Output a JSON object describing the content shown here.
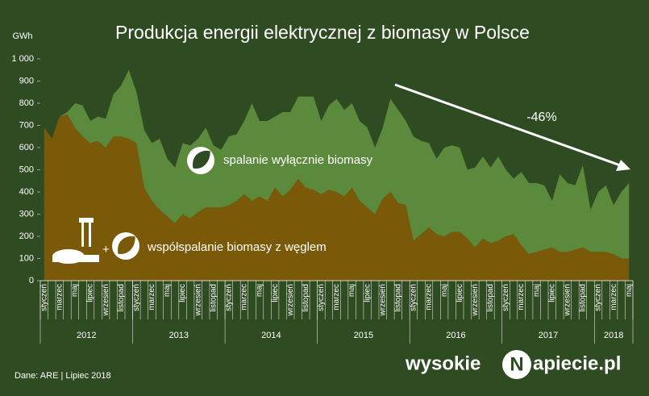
{
  "chart_data": {
    "type": "stacked-area",
    "title": "Produkcja energii elektrycznej z biomasy w Polsce",
    "y_label": "GWh",
    "categories": [
      "styczeń",
      null,
      "marzec",
      null,
      "maj",
      null,
      "lipiec",
      null,
      "wrzesień",
      null,
      "listopad",
      null,
      "styczeń",
      null,
      "marzec",
      null,
      "maj",
      null,
      "lipiec",
      null,
      "wrzesień",
      null,
      "listopad",
      null,
      "styczeń",
      null,
      "marzec",
      null,
      "maj",
      null,
      "lipiec",
      null,
      "wrzesień",
      null,
      "listopad",
      null,
      "styczeń",
      null,
      "marzec",
      null,
      "maj",
      null,
      "lipiec",
      null,
      "wrzesień",
      null,
      "listopad",
      null,
      "styczeń",
      null,
      "marzec",
      null,
      "maj",
      null,
      "lipiec",
      null,
      "wrzesień",
      null,
      "listopad",
      null,
      "styczeń",
      null,
      "marzec",
      null,
      "maj",
      null,
      "lipiec",
      null,
      "wrzesień",
      null,
      "listopad",
      null,
      "styczeń",
      null,
      "marzec",
      null,
      "maj"
    ],
    "years": [
      "2012",
      "2013",
      "2014",
      "2015",
      "2016",
      "2017",
      "2018"
    ],
    "series": [
      {
        "name": "współspalanie biomasy z węglem",
        "color": "#7a5a08",
        "values": [
          690,
          640,
          740,
          750,
          690,
          650,
          620,
          630,
          600,
          650,
          650,
          640,
          620,
          420,
          360,
          320,
          290,
          260,
          300,
          280,
          310,
          330,
          330,
          330,
          340,
          360,
          390,
          360,
          380,
          360,
          420,
          380,
          410,
          460,
          420,
          410,
          390,
          410,
          400,
          380,
          420,
          360,
          330,
          300,
          370,
          400,
          350,
          340,
          180,
          210,
          240,
          210,
          200,
          220,
          220,
          190,
          150,
          190,
          170,
          180,
          200,
          210,
          160,
          120,
          130,
          140,
          150,
          130,
          130,
          140,
          150,
          130,
          130,
          130,
          120,
          100,
          100
        ]
      },
      {
        "name": "spalanie wyłącznie biomasy",
        "color": "#5b8a3c",
        "values": [
          0,
          0,
          0,
          10,
          110,
          140,
          100,
          110,
          130,
          190,
          230,
          310,
          230,
          260,
          260,
          320,
          260,
          250,
          320,
          330,
          330,
          360,
          280,
          260,
          310,
          300,
          330,
          440,
          340,
          360,
          320,
          380,
          350,
          370,
          410,
          420,
          330,
          380,
          420,
          390,
          380,
          360,
          360,
          300,
          320,
          420,
          420,
          380,
          470,
          420,
          380,
          340,
          400,
          390,
          380,
          310,
          360,
          370,
          340,
          380,
          300,
          250,
          330,
          320,
          310,
          290,
          210,
          350,
          310,
          290,
          370,
          190,
          270,
          300,
          220,
          300,
          340
        ]
      }
    ],
    "ylim": [
      0,
      1000
    ],
    "yticks": [
      0,
      100,
      200,
      300,
      400,
      500,
      600,
      700,
      800,
      900,
      {
        "value": 1000,
        "label": "1 000"
      }
    ],
    "annotation": "-46%",
    "plus": "+",
    "source": "Dane: ARE  |  Lipiec 2018",
    "logo": [
      "wysokie",
      "N",
      "apiecie.pl"
    ]
  }
}
